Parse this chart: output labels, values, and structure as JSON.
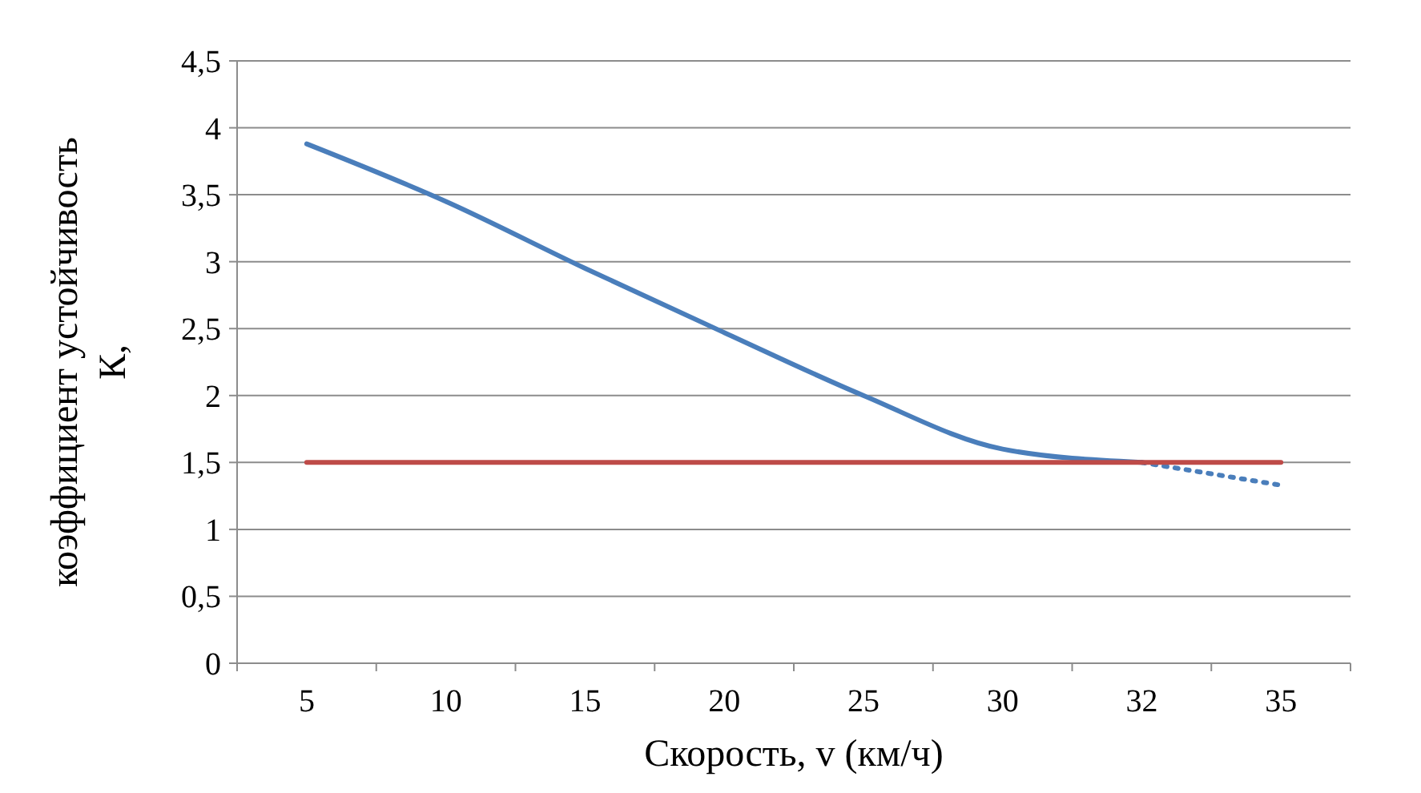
{
  "chart_data": {
    "type": "line",
    "xlabel": "Скорость, v (км/ч)",
    "ylabel": "коэффициент устойчивость\nК,",
    "categories": [
      "5",
      "10",
      "15",
      "20",
      "25",
      "30",
      "32",
      "35"
    ],
    "series": [
      {
        "color": "#4a7ebb",
        "values": [
          3.88,
          3.45,
          2.95,
          2.47,
          2.0,
          1.6,
          1.5,
          null
        ],
        "line_style": "solid"
      },
      {
        "color": "#4a7ebb",
        "values": [
          null,
          null,
          null,
          null,
          null,
          null,
          1.5,
          1.33
        ],
        "line_style": "dotted"
      },
      {
        "color": "#be4b48",
        "values": [
          1.5,
          1.5,
          1.5,
          1.5,
          1.5,
          1.5,
          1.5,
          1.5
        ],
        "line_style": "solid"
      }
    ],
    "ylim": [
      0,
      4.5
    ],
    "yticks": [
      {
        "value": 0,
        "label": "0"
      },
      {
        "value": 0.5,
        "label": "0,5"
      },
      {
        "value": 1,
        "label": "1"
      },
      {
        "value": 1.5,
        "label": "1,5"
      },
      {
        "value": 2,
        "label": "2"
      },
      {
        "value": 2.5,
        "label": "2,5"
      },
      {
        "value": 3,
        "label": "3"
      },
      {
        "value": 3.5,
        "label": "3,5"
      },
      {
        "value": 4,
        "label": "4"
      },
      {
        "value": 4.5,
        "label": "4,5"
      }
    ],
    "grid": "y"
  }
}
